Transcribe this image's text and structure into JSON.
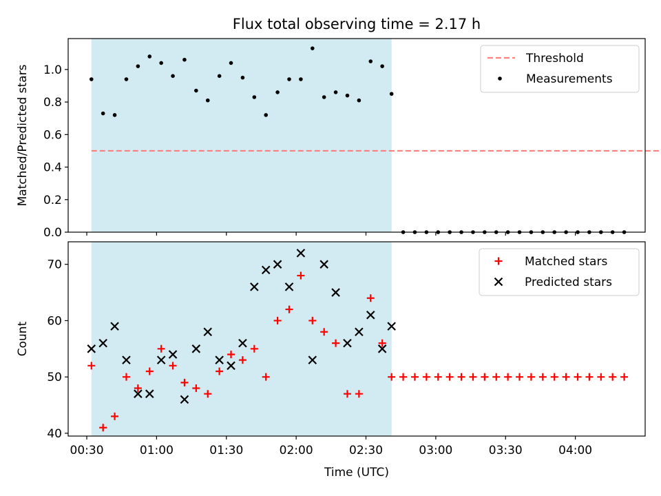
{
  "figure": {
    "title": "Flux total observing time = 2.17 h"
  },
  "colors": {
    "observing_span": "#add8e6",
    "threshold": "#ff7f7f",
    "measurements": "#000000",
    "matched": "#ff0000",
    "predicted": "#000000"
  },
  "chart_data": [
    {
      "type": "scatter",
      "panel": "top",
      "title": "Flux total observing time = 2.17 h",
      "xlabel": "",
      "ylabel": "Matched/Predicted stars",
      "xlim_minutes_utc": [
        22,
        270
      ],
      "ylim": [
        0,
        1.19
      ],
      "yticks": [
        0.0,
        0.2,
        0.4,
        0.6,
        0.8,
        1.0
      ],
      "x_tick_labels": [
        "00:30",
        "01:00",
        "01:30",
        "02:00",
        "02:30",
        "03:00",
        "03:30",
        "04:00"
      ],
      "shaded_span_utc": [
        "00:32",
        "02:41"
      ],
      "legend": {
        "position": "top-right",
        "entries": [
          "Threshold",
          "Measurements"
        ]
      },
      "threshold": {
        "name": "Threshold",
        "y": 0.5,
        "x": [
          "00:32",
          "04:38"
        ],
        "style": "dashed"
      },
      "series": [
        {
          "name": "Measurements",
          "marker": "dot",
          "x": [
            "00:32",
            "00:37",
            "00:42",
            "00:47",
            "00:52",
            "00:57",
            "01:02",
            "01:07",
            "01:12",
            "01:17",
            "01:22",
            "01:27",
            "01:32",
            "01:37",
            "01:42",
            "01:47",
            "01:52",
            "01:57",
            "02:02",
            "02:07",
            "02:12",
            "02:17",
            "02:22",
            "02:27",
            "02:32",
            "02:37",
            "02:41",
            "02:46",
            "02:51",
            "02:56",
            "03:01",
            "03:06",
            "03:11",
            "03:16",
            "03:21",
            "03:26",
            "03:31",
            "03:36",
            "03:41",
            "03:46",
            "03:51",
            "03:56",
            "04:01",
            "04:06",
            "04:11",
            "04:16",
            "04:21"
          ],
          "y": [
            0.94,
            0.73,
            0.72,
            0.94,
            1.02,
            1.08,
            1.04,
            0.96,
            1.06,
            0.87,
            0.81,
            0.96,
            1.04,
            0.95,
            0.83,
            0.72,
            0.86,
            0.94,
            0.94,
            1.13,
            0.83,
            0.86,
            0.84,
            0.81,
            1.05,
            1.02,
            0.85,
            0,
            0,
            0,
            0,
            0,
            0,
            0,
            0,
            0,
            0,
            0,
            0,
            0,
            0,
            0,
            0,
            0,
            0,
            0,
            0
          ]
        }
      ]
    },
    {
      "type": "scatter",
      "panel": "bottom",
      "xlabel": "Time (UTC)",
      "ylabel": "Count",
      "xlim_minutes_utc": [
        22,
        270
      ],
      "ylim": [
        39.5,
        74
      ],
      "yticks": [
        40,
        50,
        60,
        70
      ],
      "x_tick_labels": [
        "00:30",
        "01:00",
        "01:30",
        "02:00",
        "02:30",
        "03:00",
        "03:30",
        "04:00"
      ],
      "shaded_span_utc": [
        "00:32",
        "02:41"
      ],
      "legend": {
        "position": "top-right",
        "entries": [
          "Matched stars",
          "Predicted stars"
        ]
      },
      "series": [
        {
          "name": "Matched stars",
          "marker": "plus",
          "x": [
            "00:32",
            "00:37",
            "00:42",
            "00:47",
            "00:52",
            "00:57",
            "01:02",
            "01:07",
            "01:12",
            "01:17",
            "01:22",
            "01:27",
            "01:32",
            "01:37",
            "01:42",
            "01:47",
            "01:52",
            "01:57",
            "02:02",
            "02:07",
            "02:12",
            "02:17",
            "02:22",
            "02:27",
            "02:32",
            "02:37",
            "02:41",
            "02:46",
            "02:51",
            "02:56",
            "03:01",
            "03:06",
            "03:11",
            "03:16",
            "03:21",
            "03:26",
            "03:31",
            "03:36",
            "03:41",
            "03:46",
            "03:51",
            "03:56",
            "04:01",
            "04:06",
            "04:11",
            "04:16",
            "04:21"
          ],
          "y": [
            52,
            41,
            43,
            50,
            48,
            51,
            55,
            52,
            49,
            48,
            47,
            51,
            54,
            53,
            55,
            50,
            60,
            62,
            68,
            60,
            58,
            56,
            47,
            47,
            64,
            56,
            50,
            50,
            50,
            50,
            50,
            50,
            50,
            50,
            50,
            50,
            50,
            50,
            50,
            50,
            50,
            50,
            50,
            50,
            50,
            50,
            50
          ]
        },
        {
          "name": "Predicted stars",
          "marker": "x",
          "x": [
            "00:32",
            "00:37",
            "00:42",
            "00:47",
            "00:52",
            "00:57",
            "01:02",
            "01:07",
            "01:12",
            "01:17",
            "01:22",
            "01:27",
            "01:32",
            "01:37",
            "01:42",
            "01:47",
            "01:52",
            "01:57",
            "02:02",
            "02:07",
            "02:12",
            "02:17",
            "02:22",
            "02:27",
            "02:32",
            "02:37",
            "02:41"
          ],
          "y": [
            55,
            56,
            59,
            53,
            47,
            47,
            53,
            54,
            46,
            55,
            58,
            53,
            52,
            56,
            66,
            69,
            70,
            66,
            72,
            53,
            70,
            65,
            56,
            58,
            61,
            55,
            59
          ]
        }
      ]
    }
  ]
}
